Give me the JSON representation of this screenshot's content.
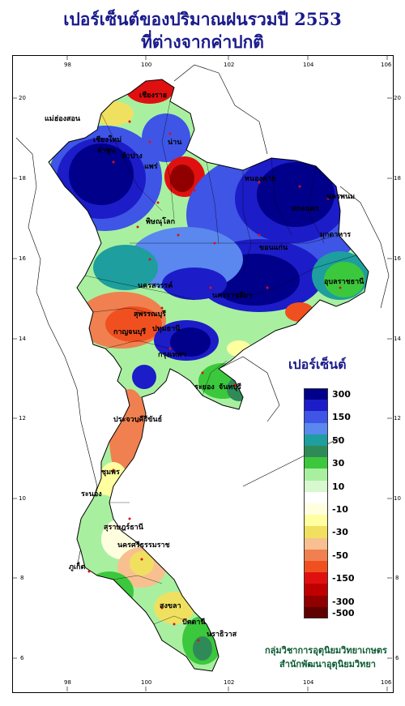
{
  "title_line1": "เปอร์เซ็นต์ของปริมาณฝนรวมปี 2553",
  "title_line2": "ที่ต่างจากค่าปกติ",
  "longitude_ticks": [
    "98",
    "100",
    "102",
    "104",
    "106"
  ],
  "latitude_ticks": [
    "20",
    "18",
    "16",
    "14",
    "12",
    "10",
    "8",
    "6"
  ],
  "legend": {
    "title": "เปอร์เซ็นต์",
    "classes": [
      {
        "label": "300",
        "color": "#00008b"
      },
      {
        "label": "",
        "color": "#1c1cc8"
      },
      {
        "label": "150",
        "color": "#3e55e6"
      },
      {
        "label": "",
        "color": "#5a88ee"
      },
      {
        "label": "50",
        "color": "#1e9e9e"
      },
      {
        "label": "",
        "color": "#2e8b57"
      },
      {
        "label": "30",
        "color": "#3cc83c"
      },
      {
        "label": "",
        "color": "#a8f0a0"
      },
      {
        "label": "10",
        "color": "#d8f8d0"
      },
      {
        "label": "",
        "color": "#ffffff"
      },
      {
        "label": "-10",
        "color": "#ffffe0"
      },
      {
        "label": "",
        "color": "#ffffa0"
      },
      {
        "label": "-30",
        "color": "#f0e060"
      },
      {
        "label": "",
        "color": "#f8c090"
      },
      {
        "label": "-50",
        "color": "#f08050"
      },
      {
        "label": "",
        "color": "#f05020"
      },
      {
        "label": "-150",
        "color": "#e01010"
      },
      {
        "label": "",
        "color": "#c00000"
      },
      {
        "label": "-300",
        "color": "#900000"
      },
      {
        "label": "-500",
        "color": "#600000"
      }
    ]
  },
  "provinces": [
    {
      "name": "เชียงราย",
      "color": "#000"
    },
    {
      "name": "แม่ฮ่องสอน",
      "color": "#000"
    },
    {
      "name": "เชียงใหม่",
      "color": "#000"
    },
    {
      "name": "ลำพูน",
      "color": "#000"
    },
    {
      "name": "ลำปาง",
      "color": "#000"
    },
    {
      "name": "น่าน",
      "color": "#000"
    },
    {
      "name": "แพร่",
      "color": "#000"
    },
    {
      "name": "หนองคาย",
      "color": "#000"
    },
    {
      "name": "นครพนม",
      "color": "#000"
    },
    {
      "name": "สกลนคร",
      "color": "#000"
    },
    {
      "name": "พิษณุโลก",
      "color": "#000"
    },
    {
      "name": "ขอนแก่น",
      "color": "#000"
    },
    {
      "name": "มุกดาหาร",
      "color": "#000"
    },
    {
      "name": "นครสวรรค์",
      "color": "#000"
    },
    {
      "name": "อุบลราชธานี",
      "color": "#000"
    },
    {
      "name": "นครราชสีมา",
      "color": "#000"
    },
    {
      "name": "สุพรรณบุรี",
      "color": "#000"
    },
    {
      "name": "กาญจนบุรี",
      "color": "#000"
    },
    {
      "name": "ปทุมธานี",
      "color": "#000"
    },
    {
      "name": "กรุงเทพฯ",
      "color": "#000"
    },
    {
      "name": "ระยอง",
      "color": "#000"
    },
    {
      "name": "จันทบุรี",
      "color": "#000"
    },
    {
      "name": "ประจวบคีรีขันธ์",
      "color": "#000"
    },
    {
      "name": "ชุมพร",
      "color": "#000"
    },
    {
      "name": "ระนอง",
      "color": "#000"
    },
    {
      "name": "สุราษฎร์ธานี",
      "color": "#000"
    },
    {
      "name": "นครศรีธรรมราช",
      "color": "#000"
    },
    {
      "name": "ภูเก็ต",
      "color": "#000"
    },
    {
      "name": "สงขลา",
      "color": "#000"
    },
    {
      "name": "ปัตตานี",
      "color": "#000"
    },
    {
      "name": "นราธิวาส",
      "color": "#000"
    }
  ],
  "credit_line1": "กลุ่มวิชาการอุตุนิยมวิทยาเกษตร",
  "credit_line2": "สำนักพัฒนาอุตุนิยมวิทยา"
}
